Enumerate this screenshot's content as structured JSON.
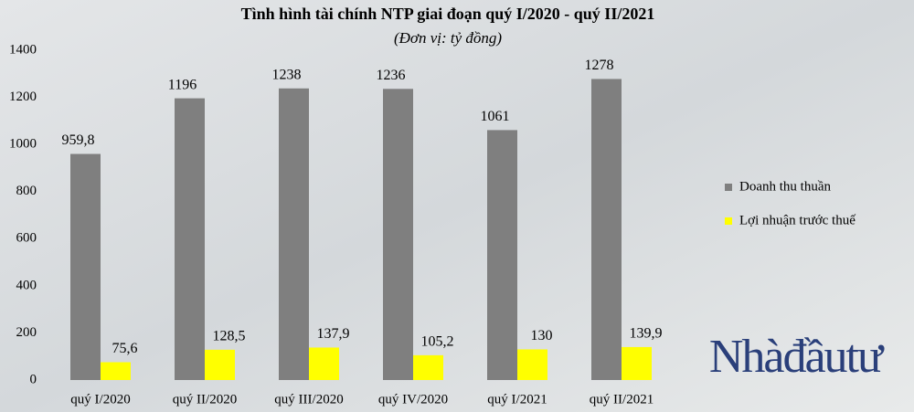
{
  "chart_data": {
    "type": "bar",
    "title": "Tình hình tài chính NTP giai đoạn quý I/2020 - quý II/2021",
    "subtitle": "(Đơn vị: tỷ đồng)",
    "categories": [
      "quý I/2020",
      "quý II/2020",
      "quý III/2020",
      "quý IV/2020",
      "quý I/2021",
      "quý II/2021"
    ],
    "series": [
      {
        "name": "Doanh thu thuần",
        "color": "#7f7f7f",
        "values": [
          959.8,
          1196,
          1238,
          1236,
          1061,
          1278
        ],
        "value_labels": [
          "959,8",
          "1196",
          "1238",
          "1236",
          "1061",
          "1278"
        ]
      },
      {
        "name": "Lợi nhuận trước thuế",
        "color": "#ffff00",
        "values": [
          75.6,
          128.5,
          137.9,
          105.2,
          130,
          139.9
        ],
        "value_labels": [
          "75,6",
          "128,5",
          "137,9",
          "105,2",
          "130",
          "139,9"
        ]
      }
    ],
    "ylim": [
      0,
      1400
    ],
    "yticks": [
      0,
      200,
      400,
      600,
      800,
      1000,
      1200,
      1400
    ],
    "grid": false,
    "legend": "right"
  },
  "watermark": "Nhàđầutư"
}
